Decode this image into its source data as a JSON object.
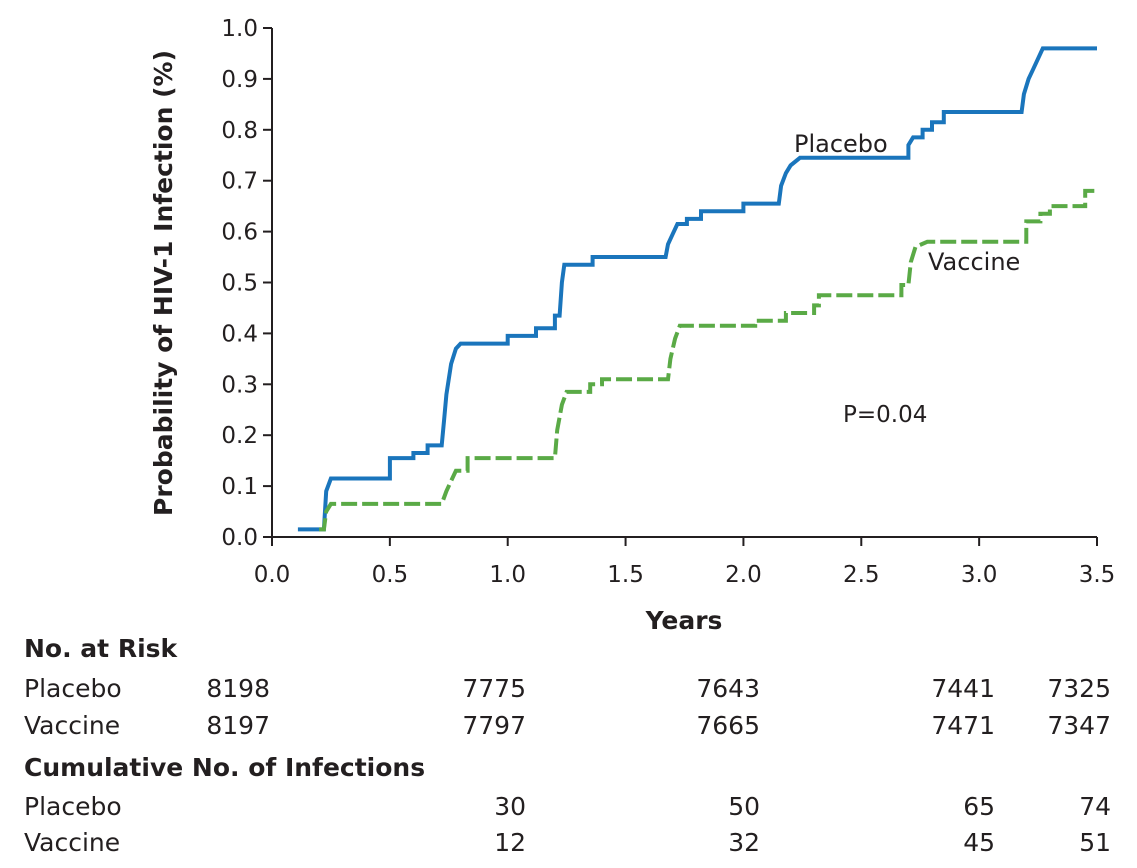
{
  "chart_data": {
    "type": "line",
    "xlabel": "Years",
    "ylabel": "Probability of HIV-1 Infection (%)",
    "xlim": [
      0,
      3.5
    ],
    "ylim": [
      0,
      1.0
    ],
    "x_ticks": [
      "0.0",
      "0.5",
      "1.0",
      "1.5",
      "2.0",
      "2.5",
      "3.0",
      "3.5"
    ],
    "y_ticks": [
      "0.0",
      "0.1",
      "0.2",
      "0.3",
      "0.4",
      "0.5",
      "0.6",
      "0.7",
      "0.8",
      "0.9",
      "1.0"
    ],
    "grid": false,
    "annotation": "P=0.04",
    "series": [
      {
        "name": "Placebo",
        "color": "#1a75bc",
        "style": "solid",
        "step_points": [
          [
            0.11,
            0.015
          ],
          [
            0.22,
            0.015
          ],
          [
            0.23,
            0.09
          ],
          [
            0.25,
            0.115
          ],
          [
            0.5,
            0.115
          ],
          [
            0.5,
            0.155
          ],
          [
            0.6,
            0.155
          ],
          [
            0.6,
            0.165
          ],
          [
            0.66,
            0.165
          ],
          [
            0.66,
            0.18
          ],
          [
            0.72,
            0.18
          ],
          [
            0.73,
            0.23
          ],
          [
            0.74,
            0.28
          ],
          [
            0.76,
            0.34
          ],
          [
            0.78,
            0.37
          ],
          [
            0.8,
            0.38
          ],
          [
            1.0,
            0.38
          ],
          [
            1.0,
            0.395
          ],
          [
            1.12,
            0.395
          ],
          [
            1.12,
            0.41
          ],
          [
            1.2,
            0.41
          ],
          [
            1.2,
            0.435
          ],
          [
            1.22,
            0.435
          ],
          [
            1.23,
            0.5
          ],
          [
            1.24,
            0.535
          ],
          [
            1.36,
            0.535
          ],
          [
            1.36,
            0.55
          ],
          [
            1.67,
            0.55
          ],
          [
            1.68,
            0.575
          ],
          [
            1.7,
            0.595
          ],
          [
            1.72,
            0.615
          ],
          [
            1.76,
            0.615
          ],
          [
            1.76,
            0.625
          ],
          [
            1.82,
            0.625
          ],
          [
            1.82,
            0.64
          ],
          [
            2.0,
            0.64
          ],
          [
            2.0,
            0.655
          ],
          [
            2.15,
            0.655
          ],
          [
            2.16,
            0.69
          ],
          [
            2.18,
            0.715
          ],
          [
            2.2,
            0.73
          ],
          [
            2.24,
            0.745
          ],
          [
            2.7,
            0.745
          ],
          [
            2.7,
            0.77
          ],
          [
            2.72,
            0.785
          ],
          [
            2.76,
            0.785
          ],
          [
            2.76,
            0.8
          ],
          [
            2.8,
            0.8
          ],
          [
            2.8,
            0.815
          ],
          [
            2.85,
            0.815
          ],
          [
            2.85,
            0.835
          ],
          [
            3.18,
            0.835
          ],
          [
            3.19,
            0.87
          ],
          [
            3.21,
            0.9
          ],
          [
            3.23,
            0.92
          ],
          [
            3.27,
            0.96
          ],
          [
            3.5,
            0.96
          ]
        ]
      },
      {
        "name": "Vaccine",
        "color": "#5aaa46",
        "style": "dashed",
        "step_points": [
          [
            0.2,
            0.015
          ],
          [
            0.22,
            0.015
          ],
          [
            0.23,
            0.05
          ],
          [
            0.25,
            0.065
          ],
          [
            0.72,
            0.065
          ],
          [
            0.74,
            0.09
          ],
          [
            0.76,
            0.11
          ],
          [
            0.78,
            0.13
          ],
          [
            0.83,
            0.13
          ],
          [
            0.83,
            0.155
          ],
          [
            1.2,
            0.155
          ],
          [
            1.21,
            0.21
          ],
          [
            1.23,
            0.26
          ],
          [
            1.25,
            0.285
          ],
          [
            1.35,
            0.285
          ],
          [
            1.35,
            0.3
          ],
          [
            1.4,
            0.3
          ],
          [
            1.4,
            0.31
          ],
          [
            1.68,
            0.31
          ],
          [
            1.69,
            0.35
          ],
          [
            1.71,
            0.39
          ],
          [
            1.73,
            0.415
          ],
          [
            2.05,
            0.415
          ],
          [
            2.05,
            0.425
          ],
          [
            2.18,
            0.425
          ],
          [
            2.18,
            0.44
          ],
          [
            2.3,
            0.44
          ],
          [
            2.3,
            0.455
          ],
          [
            2.32,
            0.455
          ],
          [
            2.32,
            0.475
          ],
          [
            2.67,
            0.475
          ],
          [
            2.67,
            0.495
          ],
          [
            2.7,
            0.495
          ],
          [
            2.71,
            0.54
          ],
          [
            2.73,
            0.57
          ],
          [
            2.78,
            0.58
          ],
          [
            3.2,
            0.58
          ],
          [
            3.2,
            0.62
          ],
          [
            3.26,
            0.62
          ],
          [
            3.26,
            0.635
          ],
          [
            3.3,
            0.635
          ],
          [
            3.3,
            0.65
          ],
          [
            3.45,
            0.65
          ],
          [
            3.45,
            0.68
          ],
          [
            3.5,
            0.68
          ]
        ]
      }
    ]
  },
  "risk_table": {
    "risk_header": "No. at Risk",
    "infections_header": "Cumulative No. of Infections",
    "risk_rows": [
      {
        "label": "Placebo",
        "values": [
          "8198",
          "7775",
          "7643",
          "7441",
          "7325"
        ]
      },
      {
        "label": "Vaccine",
        "values": [
          "8197",
          "7797",
          "7665",
          "7471",
          "7347"
        ]
      }
    ],
    "infection_rows": [
      {
        "label": "Placebo",
        "values": [
          "30",
          "50",
          "65",
          "74"
        ]
      },
      {
        "label": "Vaccine",
        "values": [
          "12",
          "32",
          "45",
          "51"
        ]
      }
    ]
  }
}
